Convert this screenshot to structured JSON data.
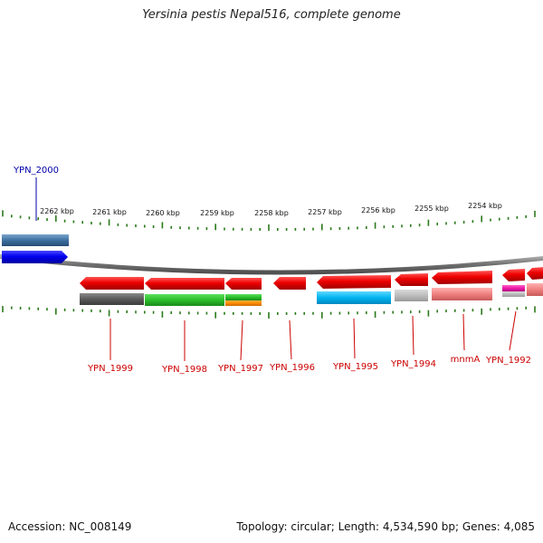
{
  "title": "Yersinia pestis Nepal516, complete genome",
  "accession": "Accession: NC_008149",
  "summary": "Topology: circular; Length: 4,534,590 bp; Genes: 4,085",
  "ruler_labels": [
    "2262 kbp",
    "2261 kbp",
    "2260 kbp",
    "2259 kbp",
    "2258 kbp",
    "2257 kbp",
    "2256 kbp",
    "2255 kbp",
    "2254 kbp"
  ],
  "genes": [
    {
      "label": "YPN_2000",
      "strand": "+",
      "color": "#0000cc"
    },
    {
      "label": "YPN_1999",
      "strand": "-",
      "color": "#cc0000"
    },
    {
      "label": "YPN_1998",
      "strand": "-",
      "color": "#cc0000"
    },
    {
      "label": "YPN_1997",
      "strand": "-",
      "color": "#cc0000"
    },
    {
      "label": "YPN_1996",
      "strand": "-",
      "color": "#cc0000"
    },
    {
      "label": "YPN_1995",
      "strand": "-",
      "color": "#cc0000"
    },
    {
      "label": "YPN_1994",
      "strand": "-",
      "color": "#cc0000"
    },
    {
      "label": "mnmA",
      "strand": "-",
      "color": "#cc0000"
    },
    {
      "label": "YPN_1992",
      "strand": "-",
      "color": "#cc0000"
    }
  ],
  "colors": {
    "tick": "#2a7a1a",
    "genome_line": "#8a8a8a",
    "gene_forward": "#0000ee",
    "gene_reverse": "#ee0000"
  }
}
